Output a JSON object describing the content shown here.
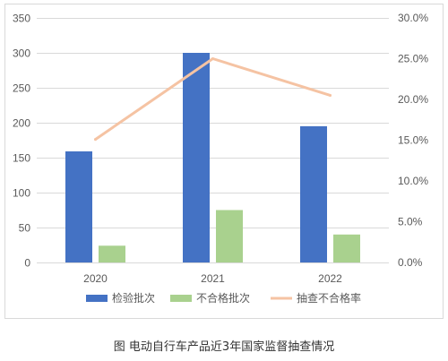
{
  "chart_data": {
    "type": "bar",
    "categories": [
      "2020",
      "2021",
      "2022"
    ],
    "series": [
      {
        "name": "检验批次",
        "type": "bar",
        "color": "#4472C4",
        "values": [
          159,
          300,
          195
        ]
      },
      {
        "name": "不合格批次",
        "type": "bar",
        "color": "#A9D18E",
        "values": [
          24,
          75,
          40
        ]
      },
      {
        "name": "抽查不合格率",
        "type": "line",
        "secondary_axis": true,
        "color": "#F5C3A3",
        "values": [
          15.1,
          25.0,
          20.5
        ]
      }
    ],
    "ylim": [
      0,
      350
    ],
    "y_ticks": [
      "0",
      "50",
      "100",
      "150",
      "200",
      "250",
      "300",
      "350"
    ],
    "y2lim": [
      0,
      30
    ],
    "y2_ticks": [
      "0.0%",
      "5.0%",
      "10.0%",
      "15.0%",
      "20.0%",
      "25.0%",
      "30.0%"
    ],
    "grid": true,
    "legend": "bottom"
  },
  "caption": "图 电动自行车产品近3年国家监督抽查情况"
}
